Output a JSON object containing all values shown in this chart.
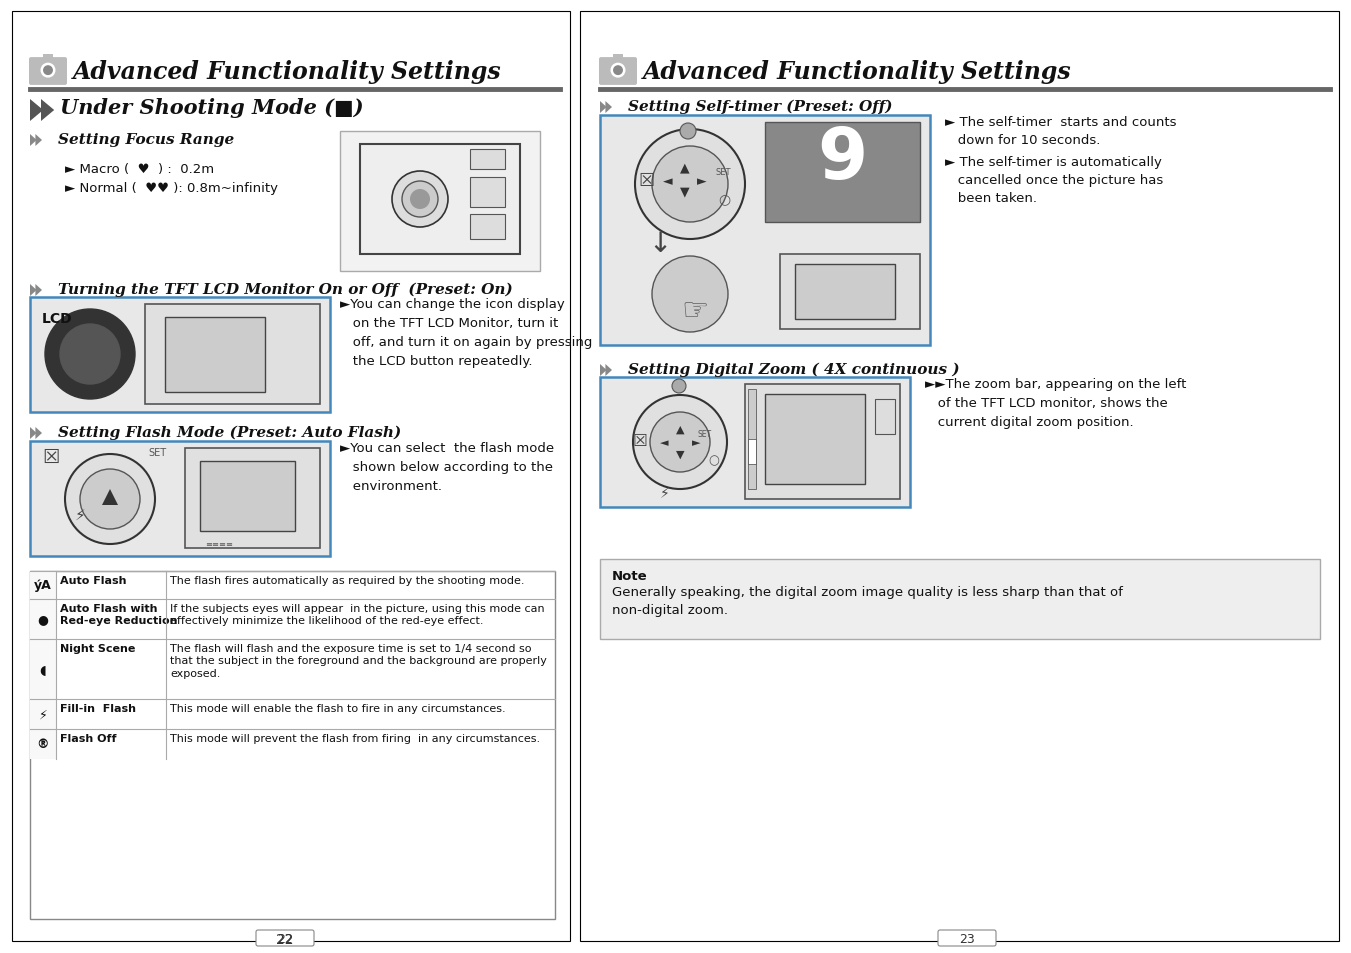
{
  "bg_color": "#ffffff",
  "left_page": {
    "title": "Advanced Functionality Settings",
    "subtitle": "Under Shooting Mode ( ■ )",
    "s1_header": "Setting Focus Range",
    "s1_bullet1": "► Macro (     ) :  0.2m",
    "s1_bullet2": "► Normal (     ): 0.8m~infinity",
    "s2_header": "Turning the TFT LCD Monitor On or Off  (Preset: On)",
    "s2_text": "►You can change the icon display\n   on the TFT LCD Monitor, turn it\n   off, and turn it on again by pressing\n   the LCD button repeatedly.",
    "s3_header": "Setting Flash Mode (Preset: Auto Flash)",
    "s3_text": "►You can select  the flash mode\n   shown below according to the\n   environment.",
    "table": [
      {
        "icon": "ýA",
        "name": "Auto Flash",
        "desc": "The flash fires automatically as required by the shooting mode."
      },
      {
        "icon": "●",
        "name": "Auto Flash with\nRed-eye Reduction",
        "desc": "If the subjects eyes will appear  in the picture, using this mode can\neffectively minimize the likelihood of the red-eye effect."
      },
      {
        "icon": "◖",
        "name": "Night Scene",
        "desc": "The flash will flash and the exposure time is set to 1/4 second so\nthat the subject in the foreground and the background are properly\nexposed."
      },
      {
        "icon": "⚡",
        "name": "Fill-in  Flash",
        "desc": "This mode will enable the flash to fire in any circumstances."
      },
      {
        "icon": "®",
        "name": "Flash Off",
        "desc": "This mode will prevent the flash from firing  in any circumstances."
      }
    ],
    "page_num": "22"
  },
  "right_page": {
    "title": "Advanced Functionality Settings",
    "s1_header": "Setting Self-timer (Preset: Off)",
    "s1_b1": "► The self-timer  starts and counts\n   down for 10 seconds.",
    "s1_b2": "► The self-timer is automatically\n   cancelled once the picture has\n   been taken.",
    "s2_header": "Setting Digital Zoom ( 4X continuous )",
    "s2_text": "►The zoom bar, appearing on the left\n   of the TFT LCD monitor, shows the\n   current digital zoom position.",
    "note_title": "Note",
    "note_text": "Generally speaking, the digital zoom image quality is less sharp than that of\nnon-digital zoom.",
    "page_num": "23"
  }
}
